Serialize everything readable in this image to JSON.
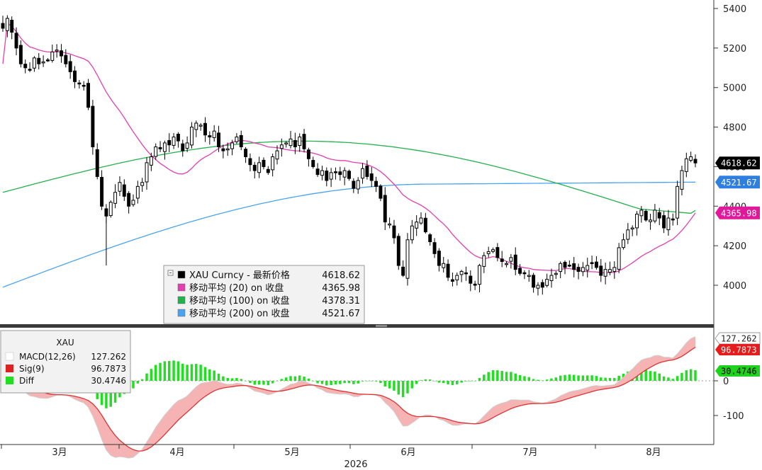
{
  "chart_data": [
    {
      "type": "candlestick",
      "title": "",
      "xlabel": "2026",
      "x_ticks": [
        "3月",
        "4月",
        "5月",
        "6月",
        "7月",
        "8月"
      ],
      "y_ticks": [
        4000,
        4200,
        4400,
        4600,
        4800,
        5000,
        5200,
        5400
      ],
      "ylim": [
        3820,
        5450
      ],
      "grid": false,
      "legend_placement": "bottom-center",
      "legend": [
        {
          "name": "XAU Curncy - 最新价格",
          "value": "4618.62",
          "color": "#000000"
        },
        {
          "name": "移动平均 (20)  on 收盘",
          "value": "4365.98",
          "color": "#e040b0"
        },
        {
          "name": "移动平均 (100)  on 收盘",
          "value": "4378.31",
          "color": "#22b14c"
        },
        {
          "name": "移动平均 (200)  on 收盘",
          "value": "4521.67",
          "color": "#4aa3f0"
        }
      ],
      "last_value_tags": [
        {
          "label": "4618.62",
          "value": 4618.62,
          "bg": "#000000",
          "fg": "#ffffff"
        },
        {
          "label": "4521.67",
          "value": 4521.67,
          "bg": "#2e7fe0",
          "fg": "#ffffff"
        },
        {
          "label": "4365.98",
          "value": 4365.98,
          "bg": "#e0189a",
          "fg": "#ffffff"
        }
      ],
      "close": [
        5300,
        5350,
        5280,
        5200,
        5120,
        5100,
        5090,
        5150,
        5120,
        5130,
        5140,
        5180,
        5190,
        5160,
        5120,
        5080,
        5030,
        5020,
        5010,
        4900,
        4700,
        4550,
        4400,
        4350,
        4420,
        4470,
        4520,
        4450,
        4400,
        4430,
        4500,
        4520,
        4620,
        4650,
        4700,
        4690,
        4720,
        4710,
        4750,
        4730,
        4680,
        4720,
        4800,
        4820,
        4810,
        4760,
        4750,
        4780,
        4700,
        4680,
        4690,
        4720,
        4750,
        4700,
        4650,
        4610,
        4580,
        4620,
        4600,
        4570,
        4650,
        4680,
        4710,
        4720,
        4740,
        4700,
        4750,
        4690,
        4640,
        4600,
        4560,
        4580,
        4530,
        4570,
        4570,
        4560,
        4580,
        4540,
        4490,
        4530,
        4590,
        4550,
        4530,
        4500,
        4440,
        4320,
        4310,
        4240,
        4100,
        4050,
        4230,
        4300,
        4320,
        4340,
        4270,
        4220,
        4160,
        4100,
        4110,
        4040,
        4020,
        4050,
        4070,
        4060,
        4010,
        4000,
        4100,
        4150,
        4170,
        4180,
        4140,
        4120,
        4110,
        4140,
        4080,
        4060,
        4060,
        4050,
        3990,
        4000,
        3990,
        4030,
        4050,
        4060,
        4110,
        4090,
        4100,
        4080,
        4070,
        4090,
        4100,
        4110,
        4090,
        4050,
        4080,
        4080,
        4090,
        4190,
        4230,
        4280,
        4290,
        4360,
        4380,
        4330,
        4330,
        4380,
        4340,
        4290,
        4340,
        4330,
        4500,
        4580,
        4640,
        4650,
        4618.62
      ],
      "ma20_endpoints": {
        "first": 5120,
        "last": 4365.98
      },
      "ma100_endpoints": {
        "first": 4470,
        "last": 4378.31
      },
      "ma200_endpoints": {
        "first": 3990,
        "last": 4521.67
      }
    },
    {
      "type": "macd",
      "title": "XAU",
      "y_ticks": [
        0,
        -100
      ],
      "ylim": [
        -158,
        155
      ],
      "legend_placement": "top-left",
      "legend": [
        {
          "name": "MACD(12,26)",
          "value": "127.262",
          "color": "#ffffff"
        },
        {
          "name": "Sig(9)",
          "value": "96.7873",
          "color": "#dd2222"
        },
        {
          "name": "Diff",
          "value": "30.4746",
          "color": "#22dd22"
        }
      ],
      "last_value_tags": [
        {
          "label": "127.262",
          "value": 127.262,
          "bg": "#ffffff",
          "fg": "#222222"
        },
        {
          "label": "96.7873",
          "value": 96.7873,
          "bg": "#e61b1b",
          "fg": "#ffffff"
        },
        {
          "label": "30.4746",
          "value": 30.4746,
          "bg": "#1ed31e",
          "fg": "#000000"
        }
      ]
    }
  ]
}
